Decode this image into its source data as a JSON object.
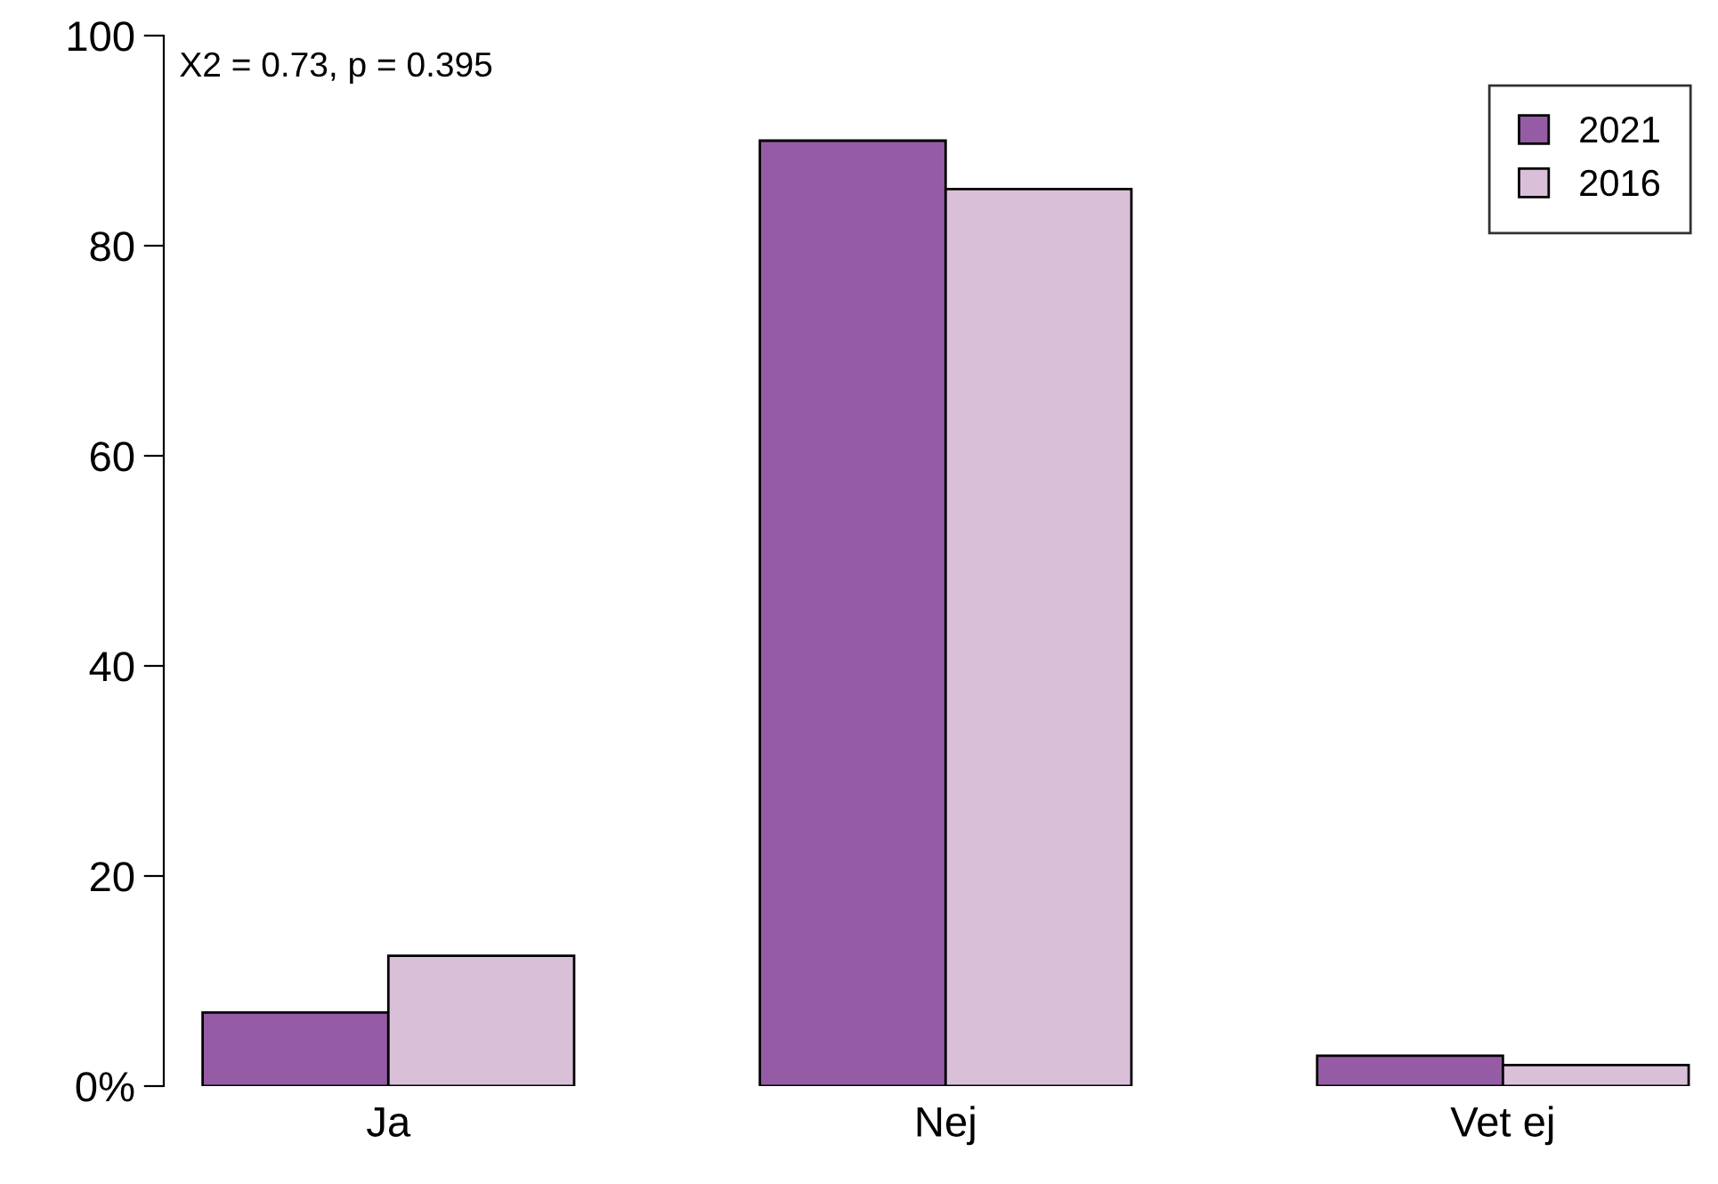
{
  "chart_data": {
    "type": "bar",
    "categories": [
      "Ja",
      "Nej",
      "Vet ej"
    ],
    "series": [
      {
        "name": "2021",
        "color": "#955ba5",
        "values": [
          7.0,
          90.0,
          2.9
        ]
      },
      {
        "name": "2016",
        "color": "#d9bfd8",
        "values": [
          12.4,
          85.4,
          2.0
        ]
      }
    ],
    "ylim": [
      0,
      100
    ],
    "yticks": [
      {
        "value": 0,
        "label": "0%"
      },
      20,
      40,
      60,
      80,
      100
    ],
    "annotations": [
      "X2 = 0.73, p = 0.395"
    ],
    "legend": "top right",
    "grid": false
  }
}
